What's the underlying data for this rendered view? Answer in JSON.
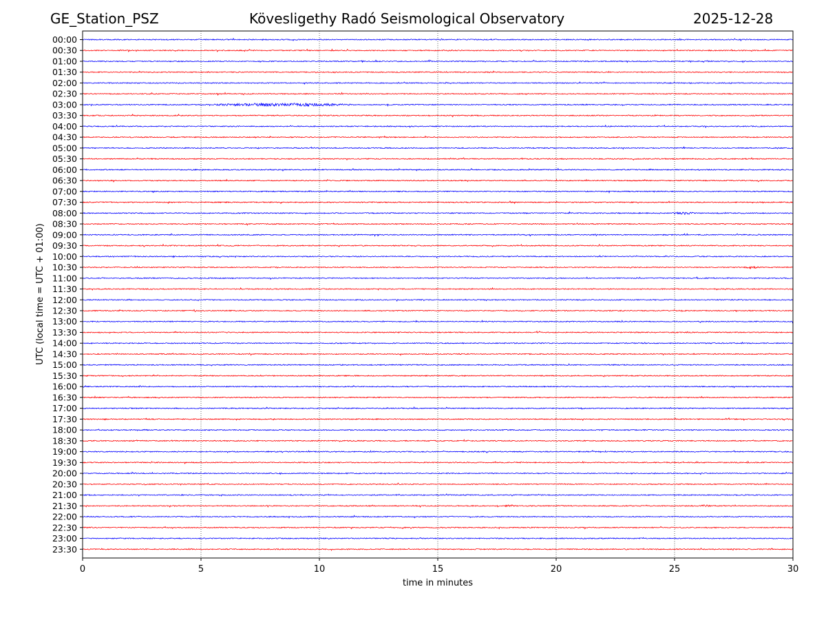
{
  "header": {
    "station": "GE_Station_PSZ",
    "observatory": "Kövesligethy Radó Seismological Observatory",
    "date": "2025-12-28"
  },
  "chart_data": {
    "type": "line",
    "title": "Kövesligethy Radó Seismological Observatory",
    "xlabel": "time in minutes",
    "ylabel": "UTC (local time = UTC + 01:00)",
    "xlim": [
      0,
      30
    ],
    "x_ticks": [
      0,
      5,
      10,
      15,
      20,
      25,
      30
    ],
    "grid": "vertical dotted at each x tick",
    "row_labels": [
      "00:00",
      "00:30",
      "01:00",
      "01:30",
      "02:00",
      "02:30",
      "03:00",
      "03:30",
      "04:00",
      "04:30",
      "05:00",
      "05:30",
      "06:00",
      "06:30",
      "07:00",
      "07:30",
      "08:00",
      "08:30",
      "09:00",
      "09:30",
      "10:00",
      "10:30",
      "11:00",
      "11:30",
      "12:00",
      "12:30",
      "13:00",
      "13:30",
      "14:00",
      "14:30",
      "15:00",
      "15:30",
      "16:00",
      "16:30",
      "17:00",
      "17:30",
      "18:00",
      "18:30",
      "19:00",
      "19:30",
      "20:00",
      "20:30",
      "21:00",
      "21:30",
      "22:00",
      "22:30",
      "23:00",
      "23:30"
    ],
    "series_colors": [
      "#0000ff",
      "#ff0000"
    ],
    "events": [
      {
        "row": "03:00",
        "start_min": 5.5,
        "end_min": 11.5,
        "amplitude": 2.2
      },
      {
        "row": "08:00",
        "start_min": 24.9,
        "end_min": 25.8,
        "amplitude": 2.0
      },
      {
        "row": "10:30",
        "start_min": 27.9,
        "end_min": 28.6,
        "amplitude": 1.8
      },
      {
        "row": "21:30",
        "start_min": 17.8,
        "end_min": 18.3,
        "amplitude": 1.5
      },
      {
        "row": "21:30",
        "start_min": 26.1,
        "end_min": 26.5,
        "amplitude": 1.5
      }
    ]
  }
}
